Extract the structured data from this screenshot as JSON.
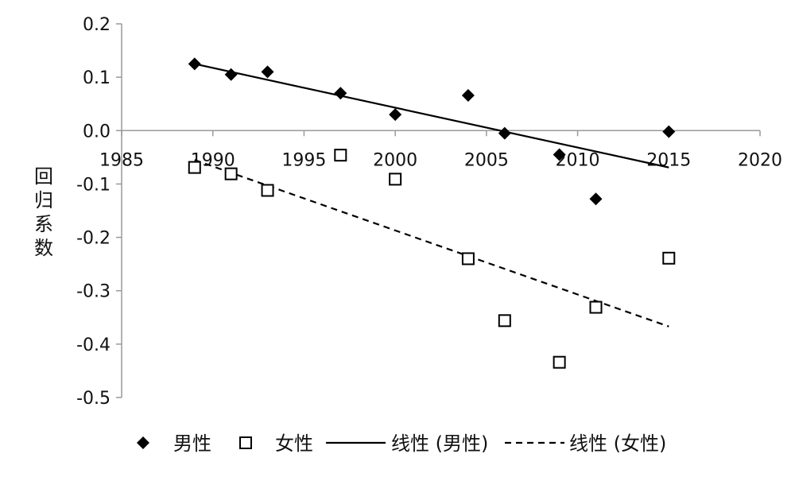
{
  "chart_data": {
    "type": "scatter",
    "title": "",
    "xlabel": "",
    "ylabel": "回归系数",
    "xlim": [
      1985,
      2020
    ],
    "ylim": [
      -0.5,
      0.2
    ],
    "x_ticks": [
      1985,
      1990,
      1995,
      2000,
      2005,
      2010,
      2015,
      2020
    ],
    "y_ticks": [
      0.2,
      0.1,
      0.0,
      -0.1,
      -0.2,
      -0.3,
      -0.4,
      -0.5
    ],
    "y_tick_labels": [
      "0.2",
      "0.1",
      "0.0",
      "-0.1",
      "-0.2",
      "-0.3",
      "-0.4",
      "-0.5"
    ],
    "grid": false,
    "legend_position": "bottom",
    "series": [
      {
        "name": "男性",
        "marker": "diamond-filled",
        "color": "#000000",
        "x": [
          1989,
          1991,
          1993,
          1997,
          2000,
          2004,
          2006,
          2009,
          2011,
          2015
        ],
        "y": [
          0.125,
          0.105,
          0.11,
          0.07,
          0.03,
          0.066,
          -0.005,
          -0.045,
          -0.128,
          -0.002
        ]
      },
      {
        "name": "女性",
        "marker": "square-open",
        "color": "#000000",
        "x": [
          1989,
          1991,
          1993,
          1997,
          2000,
          2004,
          2006,
          2009,
          2011,
          2015
        ],
        "y": [
          -0.069,
          -0.081,
          -0.112,
          -0.046,
          -0.091,
          -0.24,
          -0.356,
          -0.434,
          -0.331,
          -0.239
        ]
      }
    ],
    "trendlines": [
      {
        "name": "线性 (男性)",
        "style": "solid",
        "x": [
          1989,
          2015
        ],
        "y": [
          0.125,
          -0.069
        ]
      },
      {
        "name": "线性 (女性)",
        "style": "dashed",
        "x": [
          1989,
          2015
        ],
        "y": [
          -0.055,
          -0.367
        ]
      }
    ]
  }
}
